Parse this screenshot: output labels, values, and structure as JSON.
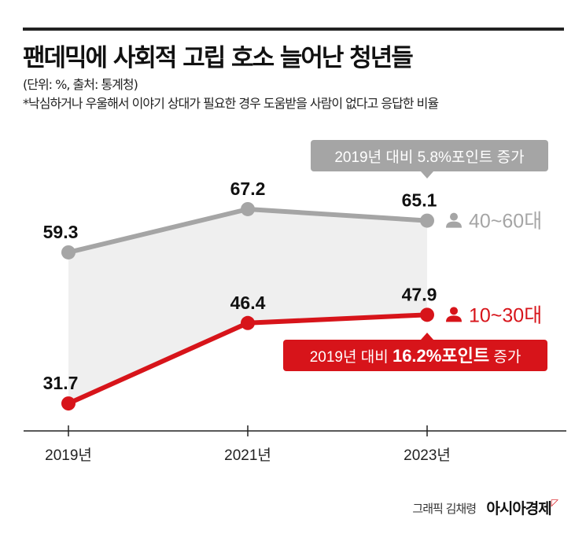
{
  "title": "팬데믹에 사회적 고립 호소 늘어난 청년들",
  "unit_source": "(단위: %, 출처: 통계청)",
  "note": "*낙심하거나 우울해서 이야기 상대가 필요한 경우 도움받을 사람이 없다고 응답한 비율",
  "credit": "그래픽 김채령",
  "logo": "아시아경제",
  "chart_data": {
    "type": "line",
    "categories": [
      "2019년",
      "2021년",
      "2023년"
    ],
    "series": [
      {
        "name": "40~60대",
        "values": [
          59.3,
          67.2,
          65.1
        ],
        "color": "#a5a5a5",
        "value_labels": [
          "59.3",
          "67.2",
          "65.1"
        ]
      },
      {
        "name": "10~30대",
        "values": [
          31.7,
          46.4,
          47.9
        ],
        "color": "#d7141a",
        "value_labels": [
          "31.7",
          "46.4",
          "47.9"
        ]
      }
    ],
    "annotations": [
      {
        "text_before": "2019년 대비 ",
        "text_bold": "5.8%포인트",
        "text_after": " 증가",
        "series": "40~60대",
        "color": "#a5a5a5"
      },
      {
        "text_before": "2019년 대비 ",
        "text_bold": "16.2%포인트",
        "text_after": " 증가",
        "series": "10~30대",
        "color": "#d7141a"
      }
    ],
    "area_fill": "#efefef",
    "legend_placement": "right",
    "grid": false
  }
}
